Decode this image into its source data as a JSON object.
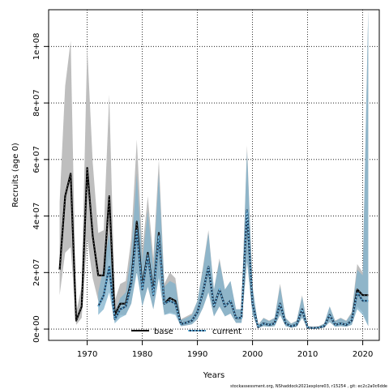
{
  "chart_data": {
    "type": "line",
    "xlabel": "Years",
    "ylabel": "Recruits (age 0)",
    "xlim": [
      1963,
      2023
    ],
    "ylim": [
      -4000000,
      113000000
    ],
    "xticks": [
      1970,
      1980,
      1990,
      2000,
      2010,
      2020
    ],
    "xtick_labels": [
      "1970",
      "1980",
      "1990",
      "2000",
      "2010",
      "2020"
    ],
    "yticks": [
      0,
      20000000,
      40000000,
      60000000,
      80000000,
      100000000
    ],
    "ytick_labels": [
      "0e+00",
      "2e+07",
      "4e+07",
      "6e+07",
      "8e+07",
      "1e+08"
    ],
    "grid": true,
    "legend_position": "bottom-center",
    "footer": "stockassessment.org, NShaddock2021explore03, r15254 , git: ec2c2a0c6dde",
    "colors": {
      "base_line": "#000000",
      "base_band": "#bebebe",
      "current_line": "#1f3f5f",
      "current_band": "#7fb2cc",
      "current_dots": "#6fc6f0"
    },
    "series": [
      {
        "name": "base",
        "style": "solid",
        "x": [
          1965,
          1966,
          1967,
          1968,
          1969,
          1970,
          1971,
          1972,
          1973,
          1974,
          1975,
          1976,
          1977,
          1978,
          1979,
          1980,
          1981,
          1982,
          1983,
          1984,
          1985,
          1986,
          1987,
          1988,
          1989,
          1990,
          1991,
          1992,
          1993,
          1994,
          1995,
          1996,
          1997,
          1998,
          1999,
          2000,
          2001,
          2002,
          2003,
          2004,
          2005,
          2006,
          2007,
          2008,
          2009,
          2010,
          2011,
          2012,
          2013,
          2014,
          2015,
          2016,
          2017,
          2018,
          2019,
          2020,
          2021
        ],
        "y": [
          21000000,
          47000000,
          55000000,
          3000000,
          8000000,
          57000000,
          33000000,
          19000000,
          19000000,
          47000000,
          5000000,
          9000000,
          9000000,
          17000000,
          38000000,
          15000000,
          27000000,
          13000000,
          34000000,
          9000000,
          11000000,
          10000000,
          1800000,
          2300000,
          3000000,
          6000000,
          13000000,
          22000000,
          8000000,
          14000000,
          8000000,
          10000000,
          4000000,
          4000000,
          42000000,
          9000000,
          700000,
          2000000,
          1500000,
          2000000,
          9000000,
          2000000,
          1000000,
          1500000,
          7000000,
          500000,
          400000,
          500000,
          1000000,
          5000000,
          1500000,
          2000000,
          1500000,
          3000000,
          14000000,
          12000000,
          12000000
        ],
        "upper": [
          45000000,
          86000000,
          102000000,
          6000000,
          15000000,
          100000000,
          59000000,
          34000000,
          35000000,
          83000000,
          10000000,
          16000000,
          17000000,
          32000000,
          67000000,
          28000000,
          47000000,
          25000000,
          60000000,
          16000000,
          20000000,
          18000000,
          3500000,
          4500000,
          5500000,
          10000000,
          22000000,
          35000000,
          14000000,
          25000000,
          14000000,
          17000000,
          7000000,
          7000000,
          65000000,
          15000000,
          1500000,
          4000000,
          3000000,
          4000000,
          16000000,
          4000000,
          2000000,
          3000000,
          12000000,
          1000000,
          800000,
          1000000,
          2000000,
          8000000,
          3000000,
          4000000,
          3000000,
          6000000,
          23000000,
          20000000,
          113000000
        ],
        "lower": [
          12000000,
          27000000,
          29000000,
          1500000,
          4000000,
          32000000,
          18000000,
          10000000,
          10000000,
          26000000,
          2500000,
          5000000,
          5000000,
          9000000,
          21000000,
          8000000,
          15000000,
          7000000,
          19000000,
          5000000,
          6000000,
          5500000,
          1000000,
          1300000,
          1700000,
          3500000,
          7500000,
          13000000,
          4500000,
          8000000,
          4500000,
          5500000,
          2200000,
          2200000,
          24000000,
          5000000,
          300000,
          1000000,
          800000,
          1000000,
          5000000,
          1000000,
          500000,
          800000,
          4000000,
          250000,
          200000,
          250000,
          500000,
          2500000,
          800000,
          1000000,
          800000,
          1500000,
          8000000,
          6000000,
          1000000
        ]
      },
      {
        "name": "current",
        "style": "dotted",
        "x": [
          1972,
          1973,
          1974,
          1975,
          1976,
          1977,
          1978,
          1979,
          1980,
          1981,
          1982,
          1983,
          1984,
          1985,
          1986,
          1987,
          1988,
          1989,
          1990,
          1991,
          1992,
          1993,
          1994,
          1995,
          1996,
          1997,
          1998,
          1999,
          2000,
          2001,
          2002,
          2003,
          2004,
          2005,
          2006,
          2007,
          2008,
          2009,
          2010,
          2011,
          2012,
          2013,
          2014,
          2015,
          2016,
          2017,
          2018,
          2019,
          2020,
          2021
        ],
        "y": [
          8000000,
          12000000,
          22000000,
          3500000,
          7000000,
          8000000,
          16000000,
          35000000,
          14000000,
          26000000,
          12000000,
          33000000,
          9000000,
          10000000,
          9000000,
          1800000,
          2300000,
          3000000,
          6000000,
          13000000,
          22000000,
          8000000,
          14000000,
          8000000,
          10000000,
          4000000,
          4000000,
          42000000,
          9000000,
          700000,
          2000000,
          1500000,
          2000000,
          9000000,
          2000000,
          1000000,
          1500000,
          7000000,
          500000,
          400000,
          500000,
          1000000,
          5000000,
          1500000,
          2000000,
          1500000,
          3000000,
          13000000,
          10000000,
          10000000
        ],
        "upper": [
          13000000,
          22000000,
          34000000,
          6000000,
          11000000,
          13000000,
          27000000,
          55000000,
          24000000,
          42000000,
          21000000,
          55000000,
          15000000,
          17000000,
          16000000,
          3200000,
          4000000,
          5000000,
          10000000,
          21000000,
          34000000,
          14000000,
          24000000,
          14000000,
          17000000,
          7000000,
          7000000,
          63000000,
          15000000,
          1400000,
          3800000,
          2800000,
          3800000,
          15000000,
          3800000,
          1900000,
          2800000,
          11500000,
          900000,
          750000,
          900000,
          1900000,
          8000000,
          2800000,
          3800000,
          2800000,
          5500000,
          21000000,
          19000000,
          113000000
        ],
        "lower": [
          5000000,
          7000000,
          13000000,
          2000000,
          4000000,
          5000000,
          9000000,
          20000000,
          8000000,
          15000000,
          7000000,
          18000000,
          5000000,
          5500000,
          5000000,
          1000000,
          1300000,
          1700000,
          3500000,
          7500000,
          13000000,
          4500000,
          8000000,
          4500000,
          5500000,
          2200000,
          2200000,
          24000000,
          5000000,
          300000,
          1000000,
          800000,
          1000000,
          5000000,
          1000000,
          500000,
          800000,
          4000000,
          250000,
          200000,
          250000,
          500000,
          2500000,
          800000,
          1000000,
          800000,
          1500000,
          7000000,
          5000000,
          1000000
        ]
      }
    ]
  }
}
